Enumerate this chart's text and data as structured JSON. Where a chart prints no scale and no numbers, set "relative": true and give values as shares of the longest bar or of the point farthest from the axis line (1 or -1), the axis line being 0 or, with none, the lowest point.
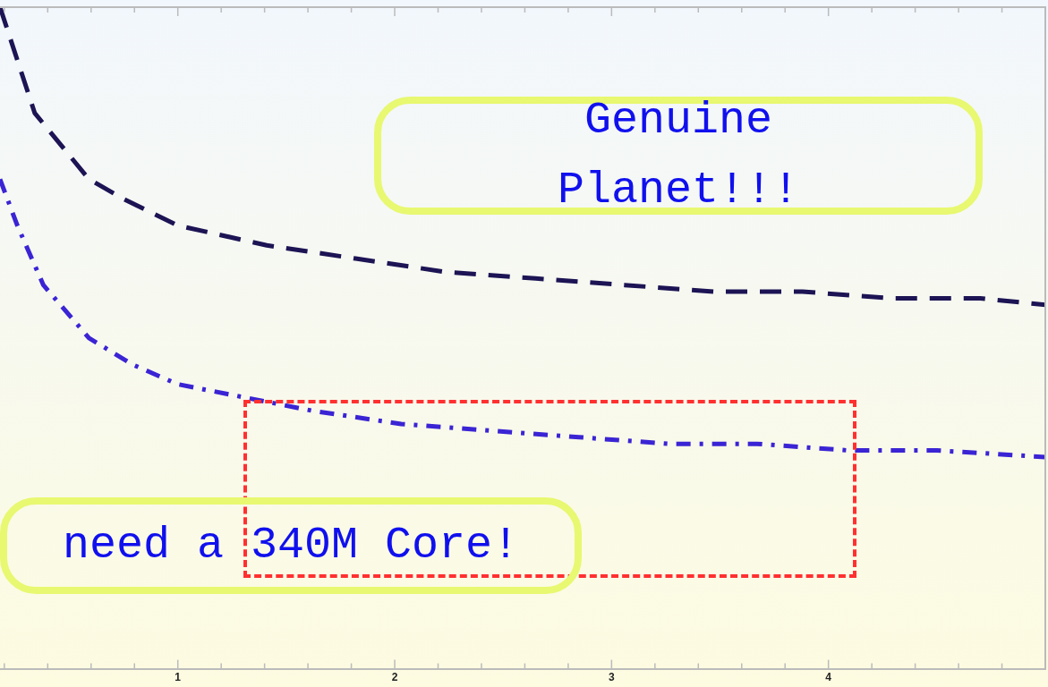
{
  "chart_data": {
    "type": "line",
    "relative": true,
    "legend": false,
    "grid": false,
    "tick_labels": "x",
    "marker": "none",
    "xlim": [
      0.18,
      5.0
    ],
    "xticks": [
      {
        "value": 0.2,
        "label": null
      },
      {
        "value": 0.4,
        "label": null
      },
      {
        "value": 0.6,
        "label": null
      },
      {
        "value": 0.8,
        "label": null
      },
      1,
      {
        "value": 1.2,
        "label": null
      },
      {
        "value": 1.4,
        "label": null
      },
      {
        "value": 1.6,
        "label": null
      },
      {
        "value": 1.8,
        "label": null
      },
      2,
      {
        "value": 2.2,
        "label": null
      },
      {
        "value": 2.4,
        "label": null
      },
      {
        "value": 2.6,
        "label": null
      },
      {
        "value": 2.8,
        "label": null
      },
      3,
      {
        "value": 3.2,
        "label": null
      },
      {
        "value": 3.4,
        "label": null
      },
      {
        "value": 3.6,
        "label": null
      },
      {
        "value": 3.8,
        "label": null
      },
      4,
      {
        "value": 4.2,
        "label": null
      },
      {
        "value": 4.4,
        "label": null
      },
      {
        "value": 4.6,
        "label": null
      },
      {
        "value": 4.8,
        "label": null
      }
    ],
    "series": [
      {
        "color": "#1c1454",
        "line_style": "dashed",
        "x": [
          0.18,
          0.34,
          0.59,
          0.75,
          1,
          1.41,
          1.82,
          2.23,
          2.65,
          3.06,
          3.47,
          3.88,
          4.29,
          4.7,
          5.0
        ],
        "values": [
          1,
          0.84,
          0.74,
          0.71,
          0.67,
          0.64,
          0.62,
          0.6,
          0.59,
          0.58,
          0.57,
          0.57,
          0.56,
          0.56,
          0.55
        ]
      },
      {
        "color": "#3a24d4",
        "line_style": "dashdot",
        "x": [
          0.18,
          0.26,
          0.38,
          0.59,
          0.79,
          1,
          1.31,
          1.62,
          2.03,
          2.44,
          2.85,
          3.26,
          3.67,
          4.09,
          4.5,
          5.0
        ],
        "values": [
          0.74,
          0.67,
          0.58,
          0.5,
          0.46,
          0.43,
          0.41,
          0.39,
          0.37,
          0.36,
          0.35,
          0.34,
          0.34,
          0.33,
          0.33,
          0.32
        ]
      }
    ],
    "annotations": [
      "Genuine Planet!!!",
      "need a 340M Core!"
    ]
  }
}
